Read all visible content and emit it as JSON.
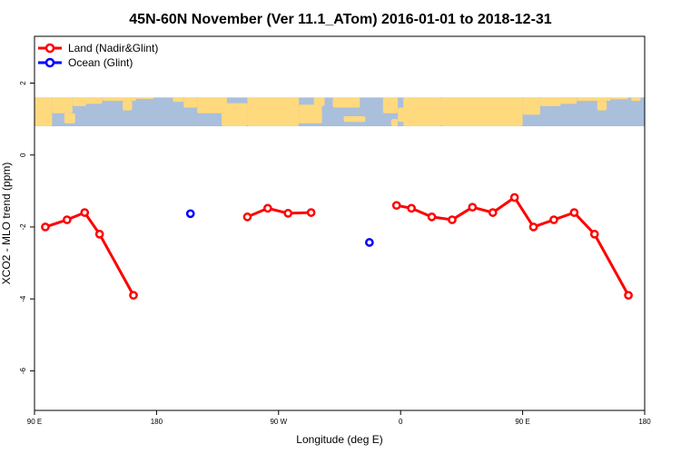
{
  "chart_data": {
    "type": "line",
    "title": "45N-60N November (Ver 11.1_ATom)   2016-01-01 to 2018-12-31",
    "xlabel": "Longitude (deg E)",
    "ylabel": "XCO2 - MLO trend (ppm)",
    "xlim": [
      90,
      540
    ],
    "ylim": [
      -7.1,
      3.3
    ],
    "grid": false,
    "legend_position": "top-left",
    "map_band": {
      "ylim": [
        0.8,
        1.6
      ],
      "ocean_color": "#a9bfdc",
      "land_color": "#fed97e"
    },
    "x_ticks": [
      {
        "value": 90,
        "label": "90 E"
      },
      {
        "value": 180,
        "label": "180"
      },
      {
        "value": 270,
        "label": "90 W"
      },
      {
        "value": 360,
        "label": "0"
      },
      {
        "value": 450,
        "label": "90 E"
      },
      {
        "value": 540,
        "label": "180"
      }
    ],
    "y_ticks": [
      {
        "value": 2,
        "label": "2"
      },
      {
        "value": 0,
        "label": "0"
      },
      {
        "value": -2,
        "label": "-2"
      },
      {
        "value": -4,
        "label": "-4"
      },
      {
        "value": -6,
        "label": "-6"
      }
    ],
    "series": [
      {
        "name": "Land (Nadir&Glint)",
        "color": "#ff0000",
        "segments": [
          [
            [
              98,
              -2.0
            ],
            [
              114,
              -1.8
            ],
            [
              127,
              -1.6
            ],
            [
              138,
              -2.2
            ],
            [
              163,
              -3.9
            ]
          ],
          [
            [
              247,
              -1.72
            ],
            [
              262,
              -1.48
            ],
            [
              277,
              -1.62
            ],
            [
              294,
              -1.6
            ]
          ],
          [
            [
              357,
              -1.4
            ],
            [
              368,
              -1.48
            ],
            [
              383,
              -1.72
            ],
            [
              398,
              -1.8
            ],
            [
              413,
              -1.45
            ],
            [
              428,
              -1.6
            ],
            [
              444,
              -1.18
            ],
            [
              458,
              -2.0
            ],
            [
              473,
              -1.8
            ],
            [
              488,
              -1.6
            ],
            [
              503,
              -2.2
            ],
            [
              528,
              -3.9
            ]
          ]
        ]
      },
      {
        "name": "Ocean (Glint)",
        "color": "#0000ff",
        "segments": [
          [
            [
              205,
              -1.63
            ]
          ],
          [
            [
              337,
              -2.43
            ]
          ]
        ]
      }
    ]
  }
}
